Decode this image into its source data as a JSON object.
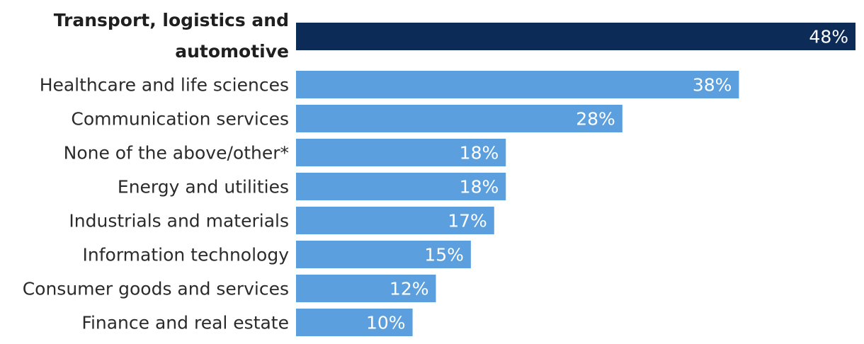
{
  "chart_data": {
    "type": "bar",
    "orientation": "horizontal",
    "title": "",
    "xlabel": "",
    "ylabel": "",
    "xlim": [
      0,
      48
    ],
    "grid": false,
    "categories": [
      [
        "Transport, logistics and",
        "automotive"
      ],
      [
        "Healthcare and life sciences"
      ],
      [
        "Communication services"
      ],
      [
        "None of the above/other*"
      ],
      [
        "Energy and utilities"
      ],
      [
        "Industrials and materials"
      ],
      [
        "Information technology"
      ],
      [
        "Consumer goods and services"
      ],
      [
        "Finance and real estate"
      ]
    ],
    "values": [
      48,
      38,
      28,
      18,
      18,
      17,
      15,
      12,
      10
    ],
    "value_labels": [
      "48%",
      "38%",
      "28%",
      "18%",
      "18%",
      "17%",
      "15%",
      "12%",
      "10%"
    ],
    "highlight_index": 0,
    "colors": {
      "highlight": "#0d2b57",
      "default": "#5b9fde",
      "value_text": "#ffffff",
      "category_text": "#2b2b2b"
    }
  }
}
